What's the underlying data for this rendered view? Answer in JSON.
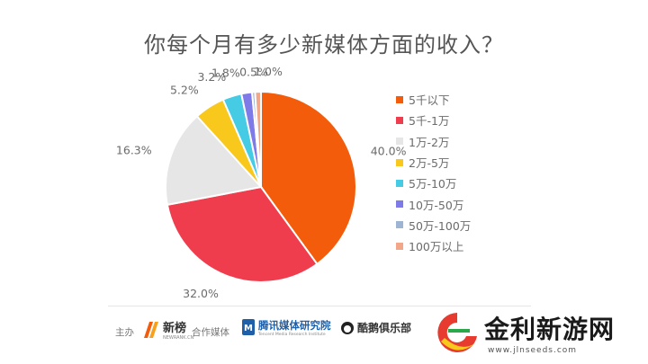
{
  "chart_data": {
    "type": "pie",
    "title": "你每个月有多少新媒体方面的收入？",
    "slices": [
      {
        "label": "5千以下",
        "value": 40.0,
        "value_label": "40.0%",
        "color": "#F25C0A"
      },
      {
        "label": "5千-1万",
        "value": 32.0,
        "value_label": "32.0%",
        "color": "#F03D4E"
      },
      {
        "label": "1万-2万",
        "value": 16.3,
        "value_label": "16.3%",
        "color": "#E6E6E6"
      },
      {
        "label": "2万-5万",
        "value": 5.2,
        "value_label": "5.2%",
        "color": "#F8C81C"
      },
      {
        "label": "5万-10万",
        "value": 3.2,
        "value_label": "3.2%",
        "color": "#45CBE4"
      },
      {
        "label": "10万-50万",
        "value": 1.8,
        "value_label": "1.8%",
        "color": "#7E7AE8"
      },
      {
        "label": "50万-100万",
        "value": 0.5,
        "value_label": "0.5%",
        "color": "#9DB5D3"
      },
      {
        "label": "100万以上",
        "value": 1.0,
        "value_label": "1.0%",
        "color": "#F2A68A"
      }
    ],
    "legend_position": "right"
  },
  "footer": {
    "sponsor_label": "主办",
    "sponsor_name": "新榜",
    "sponsor_sub": "NEWRANK.CN",
    "partner_label": "合作媒体",
    "partner1_name": "腾讯媒体研究院",
    "partner1_sub": "Tencent Media Research Institute",
    "partner2_name": "酷鹅俱乐部"
  },
  "watermark": {
    "text": "金利新游网",
    "url": "www.jlnseeds.com"
  }
}
